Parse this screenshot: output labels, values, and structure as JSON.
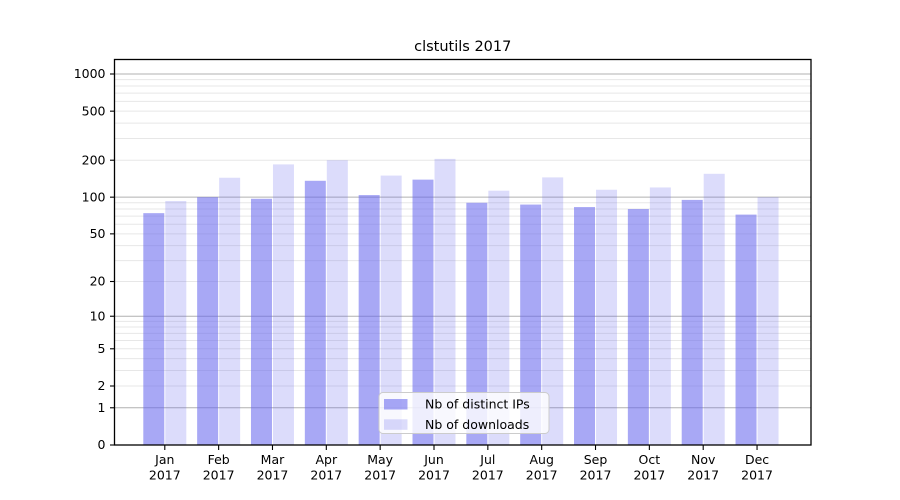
{
  "chart_data": {
    "type": "bar",
    "title": "clstutils 2017",
    "categories": [
      {
        "month": "Jan",
        "year": "2017"
      },
      {
        "month": "Feb",
        "year": "2017"
      },
      {
        "month": "Mar",
        "year": "2017"
      },
      {
        "month": "Apr",
        "year": "2017"
      },
      {
        "month": "May",
        "year": "2017"
      },
      {
        "month": "Jun",
        "year": "2017"
      },
      {
        "month": "Jul",
        "year": "2017"
      },
      {
        "month": "Aug",
        "year": "2017"
      },
      {
        "month": "Sep",
        "year": "2017"
      },
      {
        "month": "Oct",
        "year": "2017"
      },
      {
        "month": "Nov",
        "year": "2017"
      },
      {
        "month": "Dec",
        "year": "2017"
      }
    ],
    "series": [
      {
        "name": "Nb of distinct IPs",
        "color": "#6666ee",
        "alpha": 0.57,
        "values": [
          74,
          100,
          97,
          136,
          104,
          139,
          90,
          87,
          83,
          80,
          95,
          72
        ]
      },
      {
        "name": "Nb of downloads",
        "color": "#6666ee",
        "alpha": 0.23,
        "values": [
          93,
          144,
          185,
          200,
          150,
          205,
          113,
          145,
          115,
          120,
          155,
          100
        ]
      }
    ],
    "xlabel": "",
    "ylabel": "",
    "y_scale": "log10(1+y)",
    "y_ticks": [
      0,
      1,
      2,
      5,
      10,
      20,
      50,
      100,
      200,
      500,
      1000
    ],
    "ylim": [
      0,
      1310
    ],
    "grid": "on",
    "grid_minor": "log decades 2-9",
    "legend_position": "lower center",
    "colors": {
      "grid_major": "#b0b0b0",
      "grid_minor": "#e7e7e7",
      "axis": "#000000",
      "legend_border": "#cccccc",
      "legend_bg": "rgba(255,255,255,0.8)"
    }
  }
}
